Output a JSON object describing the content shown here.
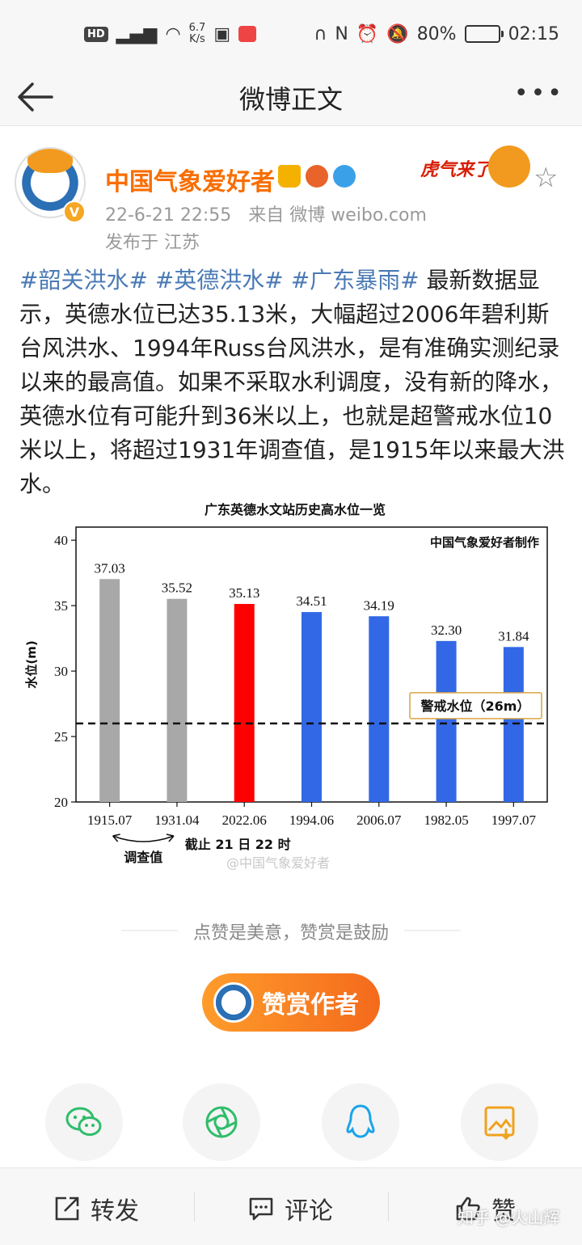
{
  "status_bar": {
    "network_badge": "HD",
    "speed_value": "6.7",
    "speed_unit": "K/s",
    "battery": "80%",
    "battery_level": 0.8,
    "time": "02:15"
  },
  "nav": {
    "title": "微博正文"
  },
  "author": {
    "name": "中国气象爱好者",
    "verified_mark": "V",
    "date": "22-6-21 22:55",
    "source": "来自 微博 weibo.com",
    "location": "发布于 江苏",
    "sticker_text": "虎气来了"
  },
  "post": {
    "hashtags": [
      "#韶关洪水#",
      "#英德洪水#",
      "#广东暴雨#"
    ],
    "text": " 最新数据显示，英德水位已达35.13米，大幅超过2006年碧利斯台风洪水、1994年Russ台风洪水，是有准确实测纪录以来的最高值。如果不采取水利调度，没有新的降水，英德水位有可能升到36米以上，也就是超警戒水位10米以上，将超过1931年调查值，是1915年以来最大洪水。"
  },
  "chart_data": {
    "type": "bar",
    "title": "广东英德水文站历史高水位一览",
    "credit": "中国气象爱好者制作",
    "ylabel": "水位(m)",
    "xlabel": "",
    "ylim": [
      20,
      41
    ],
    "yticks": [
      "20",
      "25",
      "30",
      "35",
      "40"
    ],
    "categories": [
      "1915.07",
      "1931.04",
      "2022.06",
      "1994.06",
      "2006.07",
      "1982.05",
      "1997.07"
    ],
    "values": [
      37.03,
      35.52,
      35.13,
      34.51,
      34.19,
      32.3,
      31.84
    ],
    "value_labels": [
      "37.03",
      "35.52",
      "35.13",
      "34.51",
      "34.19",
      "32.30",
      "31.84"
    ],
    "bar_colors": [
      "#a8a8a8",
      "#a8a8a8",
      "#ff0000",
      "#3268e6",
      "#3268e6",
      "#3268e6",
      "#3268e6"
    ],
    "warning_level": 26,
    "warning_label": "警戒水位（26m）",
    "survey_note": "调查值",
    "cutoff_note": "截止 21 日 22 时",
    "grid": false
  },
  "watermark": "@中国气象爱好者",
  "appreciation": {
    "text": "点赞是美意，赞赏是鼓励",
    "button_label": "赞赏作者"
  },
  "share_icons": [
    "wechat-icon",
    "moments-icon",
    "qq-icon",
    "save-image-icon"
  ],
  "bottom_bar": {
    "repost": "转发",
    "comment": "评论",
    "like": "赞"
  },
  "zhihu_watermark": "知乎 @火山辉"
}
